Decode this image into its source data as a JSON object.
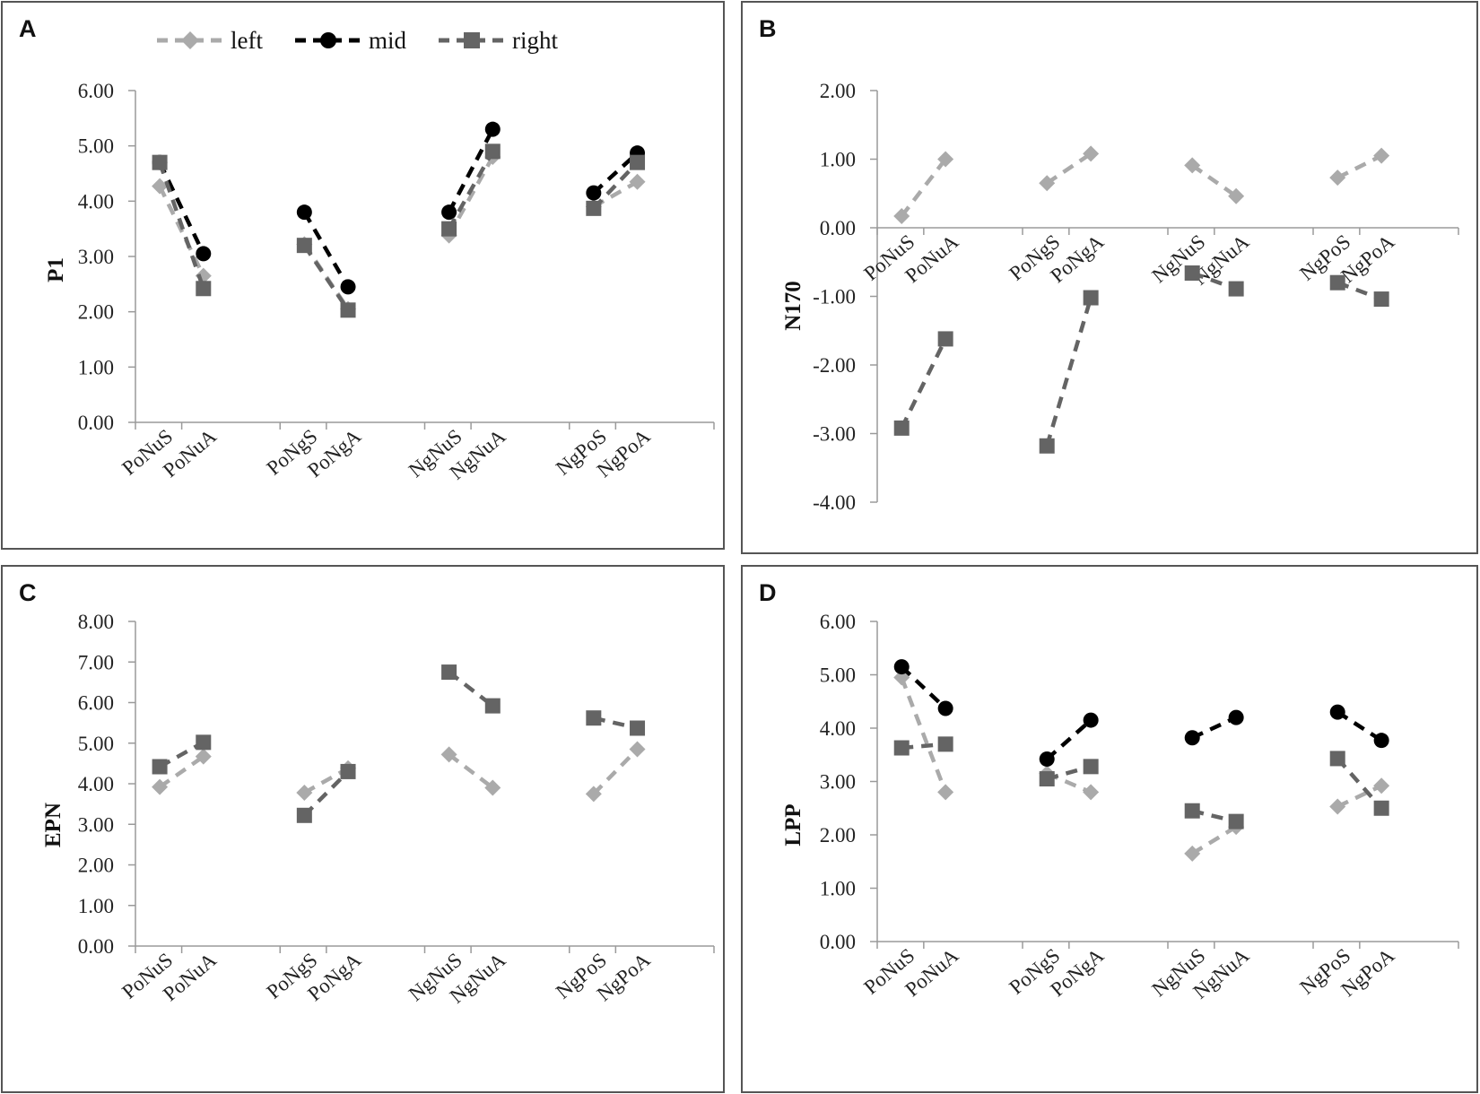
{
  "legend": {
    "left": "left",
    "mid": "mid",
    "right": "right"
  },
  "series_colors": {
    "left": "#aaaaaa",
    "mid": "#000000",
    "right": "#646464"
  },
  "chart_data": [
    {
      "panel": "A",
      "type": "line",
      "ylabel": "P1",
      "ylim": [
        0,
        6
      ],
      "yticks": [
        "0.00",
        "1.00",
        "2.00",
        "3.00",
        "4.00",
        "5.00",
        "6.00"
      ],
      "categories": [
        "PoNuS",
        "PoNuA",
        "PoNgS",
        "PoNgA",
        "NgNuS",
        "NgNuA",
        "NgPoS",
        "NgPoA"
      ],
      "series": [
        {
          "name": "left",
          "values": [
            4.27,
            2.65,
            3.22,
            2.05,
            3.38,
            4.8,
            3.9,
            4.35
          ]
        },
        {
          "name": "mid",
          "values": [
            4.7,
            3.05,
            3.8,
            2.45,
            3.8,
            5.3,
            4.15,
            4.87
          ]
        },
        {
          "name": "right",
          "values": [
            4.7,
            2.42,
            3.2,
            2.03,
            3.5,
            4.9,
            3.87,
            4.7
          ]
        }
      ]
    },
    {
      "panel": "B",
      "type": "line",
      "ylabel": "N170",
      "ylim": [
        -4,
        2
      ],
      "yticks": [
        "-4.00",
        "-3.00",
        "-2.00",
        "-1.00",
        "0.00",
        "1.00",
        "2.00"
      ],
      "categories": [
        "PoNuS",
        "PoNuA",
        "PoNgS",
        "PoNgA",
        "NgNuS",
        "NgNuA",
        "NgPoS",
        "NgPoA"
      ],
      "series": [
        {
          "name": "left",
          "values": [
            0.17,
            1.0,
            0.65,
            1.08,
            0.91,
            0.46,
            0.73,
            1.05
          ]
        },
        {
          "name": "right",
          "values": [
            -2.92,
            -1.62,
            -3.18,
            -1.02,
            -0.66,
            -0.89,
            -0.8,
            -1.04
          ]
        }
      ]
    },
    {
      "panel": "C",
      "type": "line",
      "ylabel": "EPN",
      "ylim": [
        0,
        8
      ],
      "yticks": [
        "0.00",
        "1.00",
        "2.00",
        "3.00",
        "4.00",
        "5.00",
        "6.00",
        "7.00",
        "8.00"
      ],
      "categories": [
        "PoNuS",
        "PoNuA",
        "PoNgS",
        "PoNgA",
        "NgNuS",
        "NgNuA",
        "NgPoS",
        "NgPoA"
      ],
      "series": [
        {
          "name": "left",
          "values": [
            3.92,
            4.67,
            3.78,
            4.38,
            4.72,
            3.9,
            3.75,
            4.85
          ]
        },
        {
          "name": "right",
          "values": [
            4.42,
            5.02,
            3.22,
            4.3,
            6.75,
            5.92,
            5.62,
            5.37
          ]
        }
      ]
    },
    {
      "panel": "D",
      "type": "line",
      "ylabel": "LPP",
      "ylim": [
        0,
        6
      ],
      "yticks": [
        "0.00",
        "1.00",
        "2.00",
        "3.00",
        "4.00",
        "5.00",
        "6.00"
      ],
      "categories": [
        "PoNuS",
        "PoNuA",
        "PoNgS",
        "PoNgA",
        "NgNuS",
        "NgNuA",
        "NgPoS",
        "NgPoA"
      ],
      "series": [
        {
          "name": "left",
          "values": [
            4.95,
            2.8,
            3.15,
            2.8,
            1.65,
            2.15,
            2.53,
            2.92
          ]
        },
        {
          "name": "mid",
          "values": [
            5.15,
            4.37,
            3.42,
            4.15,
            3.82,
            4.2,
            4.3,
            3.77
          ]
        },
        {
          "name": "right",
          "values": [
            3.63,
            3.7,
            3.05,
            3.28,
            2.45,
            2.25,
            3.43,
            2.5
          ]
        }
      ]
    }
  ]
}
